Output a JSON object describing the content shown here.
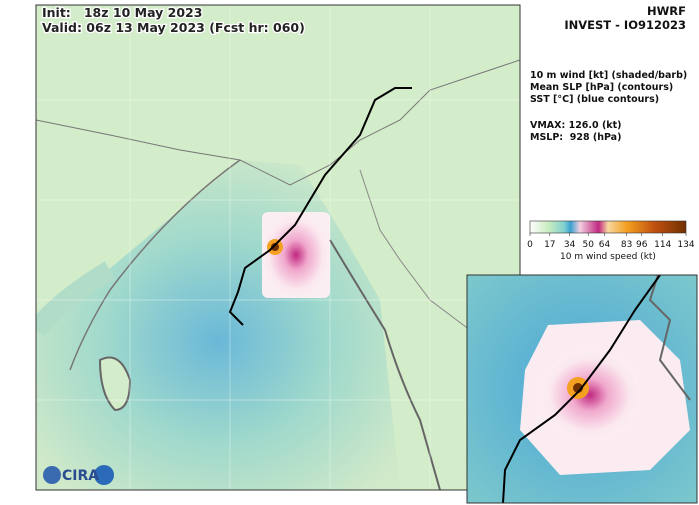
{
  "header": {
    "init": "Init:   18z 10 May 2023",
    "valid": "Valid: 06z 13 May 2023 (Fcst hr: 060)",
    "model": "HWRF",
    "storm": "INVEST - IO912023"
  },
  "legend": {
    "lines": [
      "10 m wind [kt] (shaded/barb)",
      "Mean SLP [hPa] (contours)",
      "SST [°C] (blue contours)"
    ],
    "vmax": "VMAX: 126.0 (kt)",
    "mslp": "MSLP:  928 (hPa)"
  },
  "colorbar": {
    "range": [
      0,
      134
    ],
    "ticks": [
      0,
      17,
      34,
      50,
      64,
      83,
      96,
      114,
      134
    ],
    "label": "10 m wind speed (kt)"
  },
  "logo": {
    "text": "CIRA"
  }
}
